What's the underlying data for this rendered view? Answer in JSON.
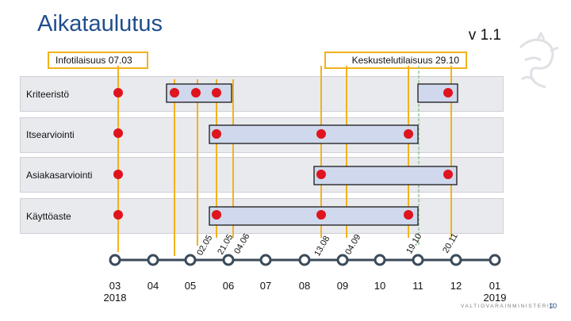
{
  "slide": {
    "title": "Aikataulutus",
    "version": "v 1.1",
    "page_number": "10",
    "footer_org": "VALTIOVARAINMINISTERIÖ"
  },
  "milestones": {
    "info_event": "Infotilaisuus 07.03",
    "consultation_event": "Keskustelutilaisuus 29.10"
  },
  "rows": [
    {
      "id": "kriteeristo",
      "label": "Kriteeristö"
    },
    {
      "id": "itsearviointi",
      "label": "Itsearviointi"
    },
    {
      "id": "asiakasarviointi",
      "label": "Asiakasarviointi"
    },
    {
      "id": "kayttoaste",
      "label": "Käyttöaste"
    }
  ],
  "timeline": {
    "ticks": [
      {
        "label": "03",
        "sublabel": "2018"
      },
      {
        "label": "04"
      },
      {
        "label": "05"
      },
      {
        "label": "06"
      },
      {
        "label": "07"
      },
      {
        "label": "08"
      },
      {
        "label": "09"
      },
      {
        "label": "10"
      },
      {
        "label": "11"
      },
      {
        "label": "12"
      },
      {
        "label": "01",
        "sublabel": "2019"
      }
    ],
    "date_labels": [
      "02.05",
      "21.05",
      "04.06",
      "13.08",
      "04.09",
      "19.10",
      "20.11"
    ]
  },
  "colors": {
    "title": "#1f4e8c",
    "milestone_line": "#f2b21b",
    "dashed_line": "#8fc98f",
    "bar_fill": "#cfd8ec",
    "bar_border": "#1a1a1a",
    "dot": "#e0141e",
    "band": "#e9eaee",
    "axis": "#3b4a5a"
  }
}
